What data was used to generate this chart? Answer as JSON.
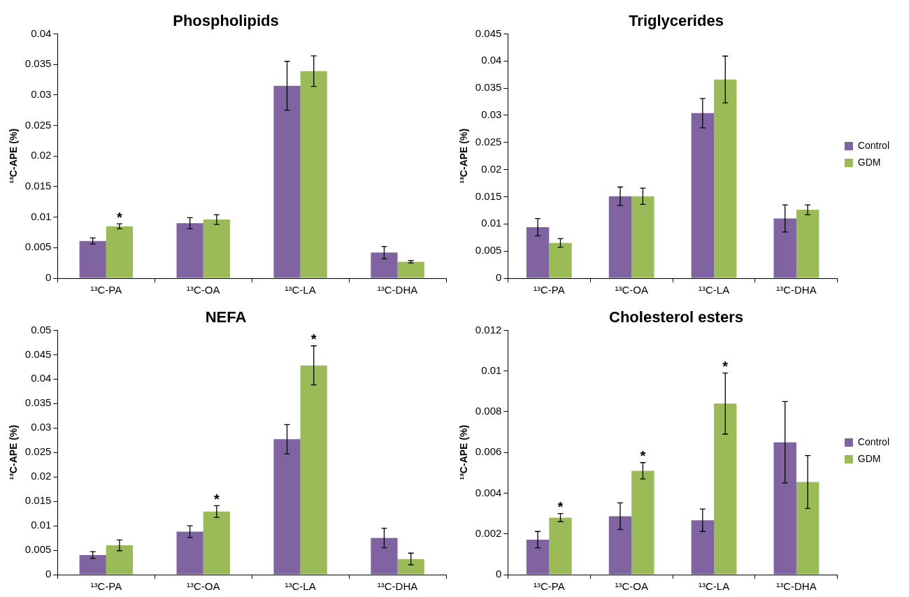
{
  "chart_data": [
    {
      "type": "bar",
      "title": "Phospholipids",
      "ylabel": "¹³C-APE (%)",
      "categories": [
        "¹³C-PA",
        "¹³C-OA",
        "¹³C-LA",
        "¹³C-DHA"
      ],
      "series": [
        {
          "color": "#8064a2",
          "values": [
            0.0061,
            0.009,
            0.0315,
            0.0042
          ],
          "errors": [
            0.0005,
            0.0009,
            0.004,
            0.001
          ]
        },
        {
          "color": "#9bbb59",
          "values": [
            0.0085,
            0.0096,
            0.0339,
            0.0027
          ],
          "errors": [
            0.0004,
            0.0008,
            0.0025,
            0.0002
          ]
        }
      ],
      "ylim": [
        0,
        0.04
      ],
      "yticks": [
        0,
        0.005,
        0.01,
        0.015,
        0.02,
        0.025,
        0.03,
        0.035,
        0.04
      ],
      "grid": false,
      "legend": false,
      "annotations": [
        {
          "text": "*",
          "x": "¹³C-PA",
          "y": 0.0085
        }
      ]
    },
    {
      "type": "bar",
      "title": "Triglycerides",
      "ylabel": "¹³C-APE (%)",
      "categories": [
        "¹³C-PA",
        "¹³C-OA",
        "¹³C-LA",
        "¹³C-DHA"
      ],
      "series": [
        {
          "name": "Control",
          "color": "#8064a2",
          "values": [
            0.0094,
            0.0151,
            0.0304,
            0.011
          ],
          "errors": [
            0.0016,
            0.0017,
            0.0027,
            0.0025
          ]
        },
        {
          "name": "GDM",
          "color": "#9bbb59",
          "values": [
            0.0065,
            0.0151,
            0.0366,
            0.0126
          ],
          "errors": [
            0.0008,
            0.0015,
            0.0043,
            0.0009
          ]
        }
      ],
      "ylim": [
        0,
        0.045
      ],
      "yticks": [
        0,
        0.005,
        0.01,
        0.015,
        0.02,
        0.025,
        0.03,
        0.035,
        0.04,
        0.045
      ],
      "grid": false,
      "legend": "right"
    },
    {
      "type": "bar",
      "title": "NEFA",
      "ylabel": "¹³C-APE (%)",
      "categories": [
        "¹³C-PA",
        "¹³C-OA",
        "¹³C-LA",
        "¹³C-DHA"
      ],
      "series": [
        {
          "color": "#8064a2",
          "values": [
            0.004,
            0.0088,
            0.0277,
            0.0075
          ],
          "errors": [
            0.0007,
            0.0012,
            0.003,
            0.002
          ]
        },
        {
          "color": "#9bbb59",
          "values": [
            0.006,
            0.0129,
            0.0428,
            0.0032
          ],
          "errors": [
            0.0011,
            0.0012,
            0.004,
            0.0012
          ]
        }
      ],
      "ylim": [
        0,
        0.05
      ],
      "yticks": [
        0,
        0.005,
        0.01,
        0.015,
        0.02,
        0.025,
        0.03,
        0.035,
        0.04,
        0.045,
        0.05
      ],
      "grid": false,
      "legend": false,
      "annotations": [
        {
          "text": "*",
          "x": "¹³C-OA",
          "y": 0.0129
        },
        {
          "text": "*",
          "x": "¹³C-LA",
          "y": 0.0428
        }
      ]
    },
    {
      "type": "bar",
      "title": "Cholesterol esters",
      "ylabel": "¹³C-APE (%)",
      "categories": [
        "¹³C-PA",
        "¹³C-OA",
        "¹³C-LA",
        "¹³C-DHA"
      ],
      "series": [
        {
          "name": "Control",
          "color": "#8064a2",
          "values": [
            0.00172,
            0.00287,
            0.00267,
            0.0065
          ],
          "errors": [
            0.0004,
            0.00065,
            0.00055,
            0.002
          ]
        },
        {
          "name": "GDM",
          "color": "#9bbb59",
          "values": [
            0.0028,
            0.0051,
            0.0084,
            0.00455
          ],
          "errors": [
            0.0002,
            0.0004,
            0.0015,
            0.0013
          ]
        }
      ],
      "ylim": [
        0,
        0.012
      ],
      "yticks": [
        0,
        0.002,
        0.004,
        0.006,
        0.008,
        0.01,
        0.012
      ],
      "grid": false,
      "legend": "right",
      "annotations": [
        {
          "text": "*",
          "x": "¹³C-PA",
          "y": 0.0028
        },
        {
          "text": "*",
          "x": "¹³C-OA",
          "y": 0.0051
        },
        {
          "text": "*",
          "x": "¹³C-LA",
          "y": 0.0084
        }
      ]
    }
  ]
}
